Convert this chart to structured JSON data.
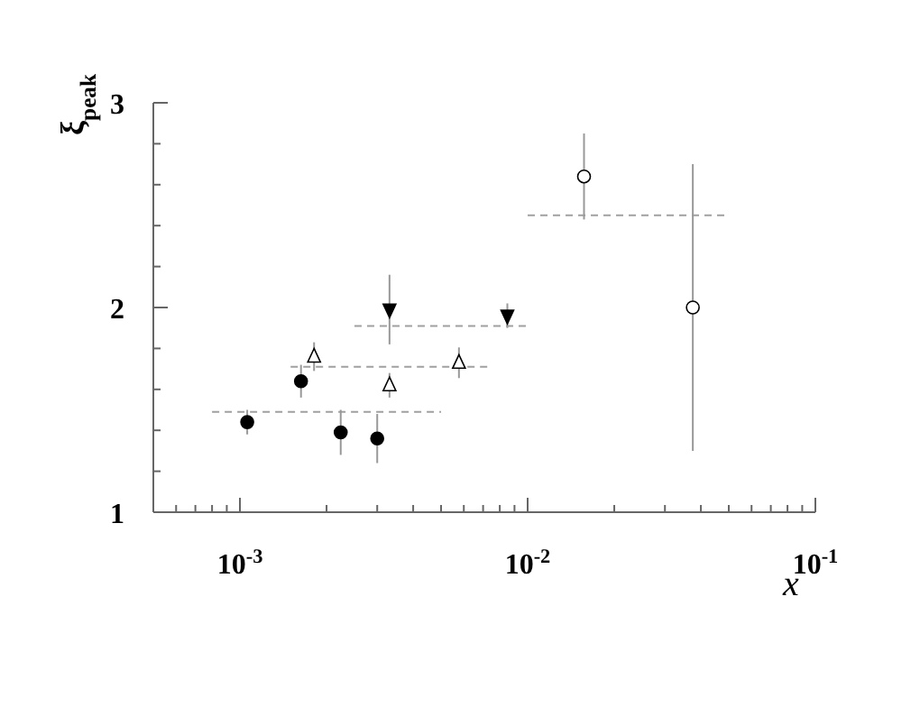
{
  "chart_data": {
    "type": "scatter",
    "ylabel": "ξ$_{peak}$",
    "xlabel": "x",
    "log": "x",
    "xlim": [
      0.0005,
      0.1
    ],
    "ylim": [
      1,
      3
    ],
    "xticks": [
      {
        "value": 0.0006,
        "label": null
      },
      {
        "value": 0.0007,
        "label": null
      },
      {
        "value": 0.0008,
        "label": null
      },
      {
        "value": 0.0009,
        "label": null
      },
      {
        "value": 0.001,
        "label": "10$^{-3}$"
      },
      {
        "value": 0.002,
        "label": null
      },
      {
        "value": 0.003,
        "label": null
      },
      {
        "value": 0.004,
        "label": null
      },
      {
        "value": 0.005,
        "label": null
      },
      {
        "value": 0.006,
        "label": null
      },
      {
        "value": 0.007,
        "label": null
      },
      {
        "value": 0.008,
        "label": null
      },
      {
        "value": 0.009,
        "label": null
      },
      {
        "value": 0.01,
        "label": "10$^{-2}$"
      },
      {
        "value": 0.02,
        "label": null
      },
      {
        "value": 0.03,
        "label": null
      },
      {
        "value": 0.04,
        "label": null
      },
      {
        "value": 0.05,
        "label": null
      },
      {
        "value": 0.06,
        "label": null
      },
      {
        "value": 0.07,
        "label": null
      },
      {
        "value": 0.08,
        "label": null
      },
      {
        "value": 0.09,
        "label": null
      },
      {
        "value": 0.1,
        "label": "10$^{-1}$"
      }
    ],
    "yticks": [
      1,
      {
        "value": 1.2,
        "label": null
      },
      {
        "value": 1.4,
        "label": null
      },
      {
        "value": 1.6,
        "label": null
      },
      {
        "value": 1.8,
        "label": null
      },
      2,
      {
        "value": 2.2,
        "label": null
      },
      {
        "value": 2.4,
        "label": null
      },
      {
        "value": 2.6,
        "label": null
      },
      {
        "value": 2.8,
        "label": null
      },
      3
    ],
    "series": [
      {
        "type": "line",
        "color": "#a0a0a0",
        "line_style": "dashed",
        "x": [
          0.0008,
          0.005
        ],
        "values": [
          1.49,
          1.49
        ]
      },
      {
        "type": "line",
        "color": "#a0a0a0",
        "line_style": "dashed",
        "x": [
          0.0015,
          0.0074
        ],
        "values": [
          1.71,
          1.71
        ]
      },
      {
        "type": "line",
        "color": "#a0a0a0",
        "line_style": "dashed",
        "x": [
          0.0025,
          0.01
        ],
        "values": [
          1.91,
          1.91
        ]
      },
      {
        "type": "line",
        "color": "#a0a0a0",
        "line_style": "dashed",
        "x": [
          0.01,
          0.05
        ],
        "values": [
          2.45,
          2.45
        ]
      },
      {
        "type": "scatter",
        "color": "#000000",
        "marker": "circle",
        "x": [
          0.00106,
          0.00163,
          0.00224,
          0.003
        ],
        "values": [
          1.44,
          1.64,
          1.39,
          1.36
        ],
        "errors": [
          0.06,
          0.08,
          0.11,
          0.12
        ]
      },
      {
        "type": "scatter",
        "color": "#000000",
        "marker": "triangle-open",
        "x": [
          0.00181,
          0.00331,
          0.00577
        ],
        "values": [
          1.76,
          1.62,
          1.73
        ],
        "errors": [
          0.07,
          0.06,
          0.075
        ]
      },
      {
        "type": "scatter",
        "color": "#000000",
        "marker": "triangle-down",
        "x": [
          0.00331,
          0.0085
        ],
        "values": [
          1.99,
          1.96
        ],
        "errors": [
          0.17,
          0.06
        ]
      },
      {
        "type": "scatter",
        "color": "#000000",
        "marker": "circle-open",
        "x": [
          0.0157,
          0.0375
        ],
        "values": [
          2.64,
          2.0
        ],
        "errors": [
          0.21,
          0.7
        ]
      }
    ]
  }
}
